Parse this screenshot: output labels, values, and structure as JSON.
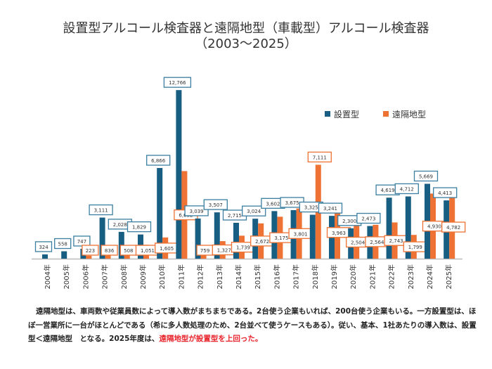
{
  "chart_data": {
    "type": "bar",
    "title": "設置型アルコール検査器と遠隔地型（車載型）アルコール検査器",
    "subtitle": "（2003〜2025）",
    "categories": [
      "2004年",
      "2005年",
      "2006年",
      "2007年",
      "2008年",
      "2009年",
      "2010年",
      "2011年",
      "2012年",
      "2013年",
      "2014年",
      "2015年",
      "2016年",
      "2017年",
      "2018年",
      "2019年",
      "2020年",
      "2021年",
      "2022年",
      "2023年",
      "2024年",
      "2025年"
    ],
    "series": [
      {
        "name": "設置型",
        "color": "#175e82",
        "values": [
          324,
          558,
          747,
          3111,
          2028,
          1829,
          6866,
          12766,
          3039,
          3507,
          2715,
          3024,
          3602,
          3675,
          3325,
          3241,
          2300,
          2473,
          4619,
          4712,
          5669,
          4413
        ],
        "labels": [
          "324",
          "558",
          "747",
          "3,111",
          "2,028",
          "1,829",
          "6,866",
          "12,766",
          "3,039",
          "3,507",
          "2,715",
          "3,024",
          "3,602",
          "3,675",
          "3,325",
          "3,241",
          "2,300",
          "2,473",
          "4,619",
          "4,712",
          "5,669",
          "4,413"
        ]
      },
      {
        "name": "遠隔地型",
        "color": "#ee7233",
        "values": [
          null,
          null,
          223,
          836,
          508,
          1051,
          1605,
          6632,
          759,
          1327,
          1739,
          2672,
          3175,
          3801,
          7111,
          3963,
          2504,
          2564,
          2743,
          1799,
          4930,
          4782
        ],
        "labels": [
          null,
          null,
          "223",
          "836",
          "508",
          "1,051",
          "1,605",
          "6,632",
          "759",
          "1,327",
          "1,739",
          "2,672",
          "3,175",
          "3,801",
          "7,111",
          "3,963",
          "2,504",
          "2,564",
          "2,743",
          "1,799",
          "4,930",
          "4,782"
        ]
      }
    ],
    "ylim": [
      0,
      14000
    ],
    "grid": false,
    "legend": "top-right"
  },
  "note": {
    "text": "遠隔地型は、車両数や従業員数によって導入数がまちまちである。2台使う企業もいれば、200台使う企業もいる。一方設置型は、ほぼ一営業所に一台がほとんどである（希に多人数処理のため、2台並べて使うケースもある）。従い、基本、1社あたりの導入数は、設置型＜遠隔地型　となる。2025年度は、",
    "highlight": "遠隔地型が設置型を上回った。"
  }
}
